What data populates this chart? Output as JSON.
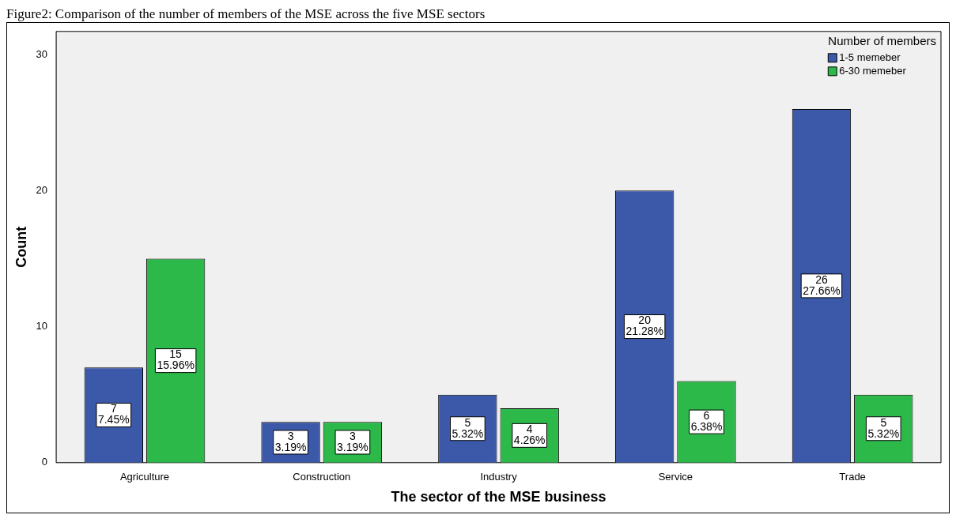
{
  "chart_data": {
    "type": "bar",
    "title": "Figure2: Comparison of the number of members of the MSE across the five MSE sectors",
    "xlabel": "The sector of the MSE business",
    "ylabel": "Count",
    "legend_title": "Number of members",
    "categories": [
      "Agriculture",
      "Construction",
      "Industry",
      "Service",
      "Trade"
    ],
    "series": [
      {
        "name": "1-5 memeber",
        "color": "#3c58a8",
        "values": [
          7,
          3,
          5,
          20,
          26
        ],
        "value_labels": [
          "7\n7.45%",
          "3\n3.19%",
          "5\n5.32%",
          "20\n21.28%",
          "26\n27.66%"
        ]
      },
      {
        "name": "6-30 memeber",
        "color": "#2db84a",
        "values": [
          15,
          3,
          4,
          6,
          5
        ],
        "value_labels": [
          "15\n15.96%",
          "3\n3.19%",
          "4\n4.26%",
          "6\n6.38%",
          "5\n5.32%"
        ]
      }
    ],
    "ylim": [
      0,
      31.7
    ],
    "yticks": [
      0,
      10,
      20,
      30
    ],
    "grid": false,
    "legend": "top right"
  }
}
